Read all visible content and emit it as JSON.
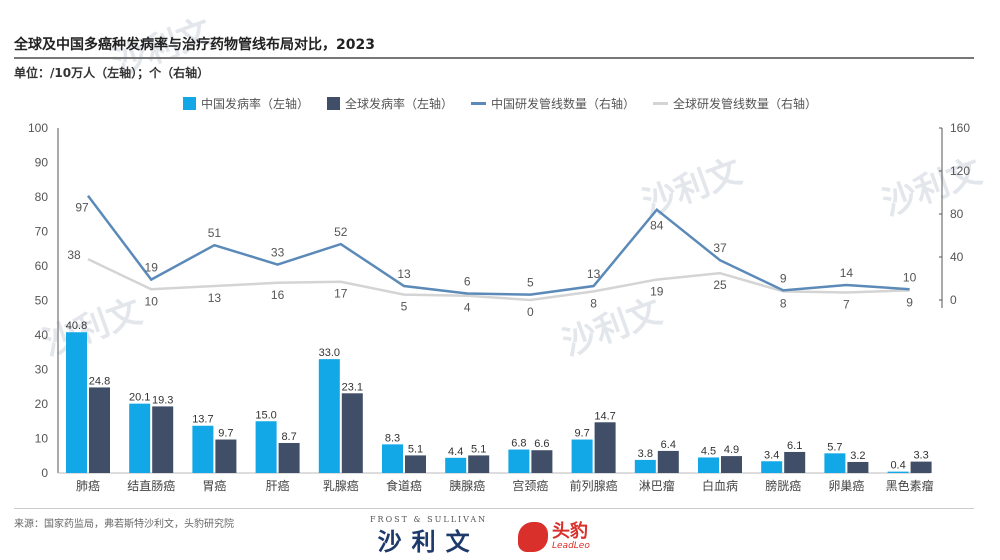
{
  "header": {
    "title": "全球及中国多癌种发病率与治疗药物管线布局对比，2023",
    "units": "单位：/10万人（左轴）；个（右轴）"
  },
  "footer": {
    "source": "来源：国家药监局，弗若斯特沙利文，头豹研究院",
    "logo_frost_small": "FROST & SULLIVAN",
    "logo_frost_big": "沙利文",
    "logo_leadleo_cn": "头豹",
    "logo_leadleo_en": "LeadLeo"
  },
  "watermark": "沙利文",
  "colors": {
    "china_bar": "#12a7e6",
    "global_bar": "#404e67",
    "china_line": "#5b8ab8",
    "global_line": "#d4d4d4"
  },
  "chart_data": {
    "type": "bar+line",
    "title": "全球及中国多癌种发病率与治疗药物管线布局对比，2023",
    "categories": [
      "肺癌",
      "结直肠癌",
      "胃癌",
      "肝癌",
      "乳腺癌",
      "食道癌",
      "胰腺癌",
      "宫颈癌",
      "前列腺癌",
      "淋巴瘤",
      "白血病",
      "膀胱癌",
      "卵巢癌",
      "黑色素瘤"
    ],
    "left_axis": {
      "range": [
        0,
        100
      ],
      "ticks": [
        "0",
        "10",
        "20",
        "30",
        "40",
        "50",
        "60",
        "70",
        "80",
        "90",
        "100"
      ]
    },
    "right_axis": {
      "range": [
        0,
        160
      ],
      "ticks": [
        "0",
        "40",
        "80",
        "120",
        "160"
      ]
    },
    "legend_position": "top",
    "series": [
      {
        "name": "中国发病率（左轴）",
        "type": "bar",
        "axis": "left",
        "values": [
          40.8,
          20.1,
          13.7,
          15.0,
          33.0,
          8.3,
          4.4,
          6.8,
          9.7,
          3.8,
          4.5,
          3.4,
          5.7,
          0.4
        ],
        "labels": [
          "40.8",
          "20.1",
          "13.7",
          "15.0",
          "33.0",
          "8.3",
          "4.4",
          "6.8",
          "9.7",
          "3.8",
          "4.5",
          "3.4",
          "5.7",
          "0.4"
        ]
      },
      {
        "name": "全球发病率（左轴）",
        "type": "bar",
        "axis": "left",
        "values": [
          24.8,
          19.3,
          9.7,
          8.7,
          23.1,
          5.1,
          5.1,
          6.6,
          14.7,
          6.4,
          4.9,
          6.1,
          3.2,
          3.3
        ],
        "labels": [
          "24.8",
          "19.3",
          "9.7",
          "8.7",
          "23.1",
          "5.1",
          "5.1",
          "6.6",
          "14.7",
          "6.4",
          "4.9",
          "6.1",
          "3.2",
          "3.3"
        ]
      },
      {
        "name": "中国研发管线数量（右轴）",
        "type": "line",
        "axis": "right",
        "values": [
          97,
          19,
          51,
          33,
          52,
          13,
          6,
          5,
          13,
          84,
          37,
          9,
          14,
          10
        ],
        "labels": [
          "97",
          "19",
          "51",
          "33",
          "52",
          "13",
          "6",
          "5",
          "13",
          "84",
          "37",
          "9",
          "14",
          "10"
        ]
      },
      {
        "name": "全球研发管线数量（右轴）",
        "type": "line",
        "axis": "right",
        "values": [
          38,
          10,
          13,
          16,
          17,
          5,
          4,
          0,
          8,
          19,
          25,
          8,
          7,
          9
        ],
        "labels": [
          "38",
          "10",
          "13",
          "16",
          "17",
          "5",
          "4",
          "0",
          "8",
          "19",
          "25",
          "8",
          "7",
          "9"
        ]
      }
    ]
  }
}
